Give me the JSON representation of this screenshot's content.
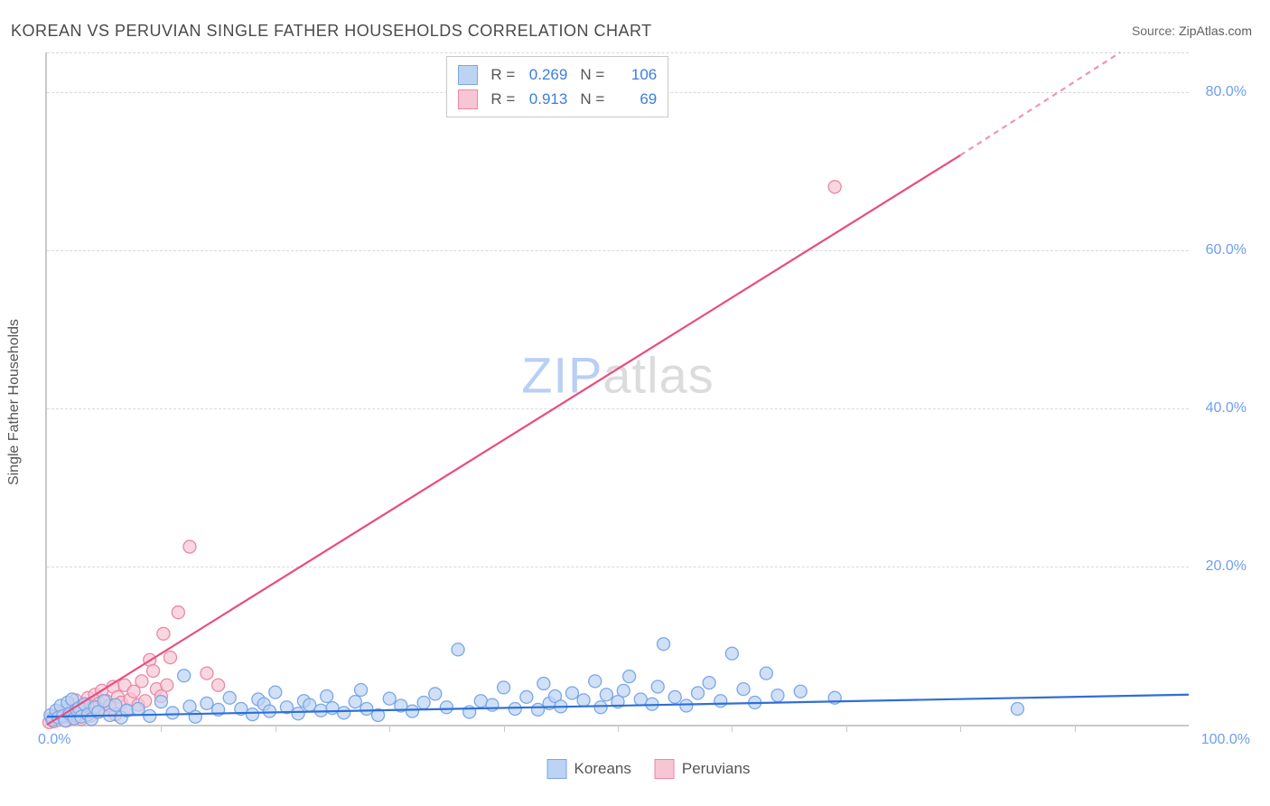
{
  "title": "KOREAN VS PERUVIAN SINGLE FATHER HOUSEHOLDS CORRELATION CHART",
  "source_label": "Source:",
  "source_value": "ZipAtlas.com",
  "watermark_zip": "ZIP",
  "watermark_atlas": "atlas",
  "chart": {
    "type": "scatter",
    "ylabel": "Single Father Households",
    "xlim": [
      0,
      100
    ],
    "ylim": [
      0,
      85
    ],
    "xaxis_left": "0.0%",
    "xaxis_right": "100.0%",
    "ytick_values": [
      20,
      40,
      60,
      80
    ],
    "ytick_labels": [
      "20.0%",
      "40.0%",
      "60.0%",
      "80.0%"
    ],
    "xaxis_tick_positions": [
      10,
      20,
      30,
      40,
      50,
      60,
      70,
      80,
      90
    ],
    "grid_color": "#d9d9d9",
    "axis_color": "#c9c9c9",
    "background_color": "#ffffff",
    "marker_radius": 7,
    "marker_stroke_width": 1.3,
    "line_width": 2.2,
    "series": {
      "koreans": {
        "label": "Koreans",
        "fill": "#bcd3f4",
        "stroke": "#7aa6e6",
        "line_color": "#2f6fd6",
        "r": "0.269",
        "n": "106",
        "trend": {
          "x1": 0,
          "y1": 1.0,
          "x2": 100,
          "y2": 3.8
        },
        "points": [
          [
            0.3,
            1.2
          ],
          [
            0.5,
            0.6
          ],
          [
            0.8,
            1.8
          ],
          [
            1.0,
            0.9
          ],
          [
            1.2,
            2.4
          ],
          [
            1.4,
            1.1
          ],
          [
            1.6,
            0.5
          ],
          [
            1.8,
            2.8
          ],
          [
            2.0,
            1.4
          ],
          [
            2.2,
            3.2
          ],
          [
            2.4,
            0.8
          ],
          [
            2.6,
            1.9
          ],
          [
            2.8,
            2.1
          ],
          [
            3.0,
            1.0
          ],
          [
            3.3,
            2.6
          ],
          [
            3.6,
            1.3
          ],
          [
            3.9,
            0.7
          ],
          [
            4.2,
            2.2
          ],
          [
            4.5,
            1.6
          ],
          [
            5.0,
            3.0
          ],
          [
            5.5,
            1.2
          ],
          [
            6.0,
            2.5
          ],
          [
            6.5,
            0.9
          ],
          [
            7.0,
            1.8
          ],
          [
            8.0,
            2.0
          ],
          [
            9.0,
            1.1
          ],
          [
            10.0,
            2.9
          ],
          [
            11.0,
            1.5
          ],
          [
            12.0,
            6.2
          ],
          [
            12.5,
            2.3
          ],
          [
            13.0,
            1.0
          ],
          [
            14.0,
            2.7
          ],
          [
            15.0,
            1.9
          ],
          [
            16.0,
            3.4
          ],
          [
            17.0,
            2.0
          ],
          [
            18.0,
            1.3
          ],
          [
            18.5,
            3.2
          ],
          [
            19.0,
            2.6
          ],
          [
            19.5,
            1.7
          ],
          [
            20.0,
            4.1
          ],
          [
            21.0,
            2.2
          ],
          [
            22.0,
            1.4
          ],
          [
            22.5,
            3.0
          ],
          [
            23.0,
            2.5
          ],
          [
            24.0,
            1.8
          ],
          [
            24.5,
            3.6
          ],
          [
            25.0,
            2.1
          ],
          [
            26.0,
            1.5
          ],
          [
            27.0,
            2.9
          ],
          [
            27.5,
            4.4
          ],
          [
            28.0,
            2.0
          ],
          [
            29.0,
            1.2
          ],
          [
            30.0,
            3.3
          ],
          [
            31.0,
            2.4
          ],
          [
            32.0,
            1.7
          ],
          [
            33.0,
            2.8
          ],
          [
            34.0,
            3.9
          ],
          [
            35.0,
            2.2
          ],
          [
            36.0,
            9.5
          ],
          [
            37.0,
            1.6
          ],
          [
            38.0,
            3.0
          ],
          [
            39.0,
            2.5
          ],
          [
            40.0,
            4.7
          ],
          [
            41.0,
            2.0
          ],
          [
            42.0,
            3.5
          ],
          [
            43.0,
            1.9
          ],
          [
            43.5,
            5.2
          ],
          [
            44.0,
            2.7
          ],
          [
            44.5,
            3.6
          ],
          [
            45.0,
            2.3
          ],
          [
            46.0,
            4.0
          ],
          [
            47.0,
            3.1
          ],
          [
            48.0,
            5.5
          ],
          [
            48.5,
            2.2
          ],
          [
            49.0,
            3.8
          ],
          [
            50.0,
            2.9
          ],
          [
            50.5,
            4.3
          ],
          [
            51.0,
            6.1
          ],
          [
            52.0,
            3.2
          ],
          [
            53.0,
            2.6
          ],
          [
            53.5,
            4.8
          ],
          [
            54.0,
            10.2
          ],
          [
            55.0,
            3.5
          ],
          [
            56.0,
            2.4
          ],
          [
            57.0,
            4.0
          ],
          [
            58.0,
            5.3
          ],
          [
            59.0,
            3.0
          ],
          [
            60.0,
            9.0
          ],
          [
            61.0,
            4.5
          ],
          [
            62.0,
            2.8
          ],
          [
            63.0,
            6.5
          ],
          [
            64.0,
            3.7
          ],
          [
            66.0,
            4.2
          ],
          [
            69.0,
            3.4
          ],
          [
            85.0,
            2.0
          ]
        ]
      },
      "peruvians": {
        "label": "Peruvians",
        "fill": "#f7c6d4",
        "stroke": "#ec87a6",
        "line_color": "#ea4c7e",
        "r": "0.913",
        "n": "69",
        "trend_solid": {
          "x1": 0,
          "y1": 0,
          "x2": 80,
          "y2": 72
        },
        "trend_dashed": {
          "x1": 80,
          "y1": 72,
          "x2": 94,
          "y2": 85
        },
        "points": [
          [
            0.2,
            0.3
          ],
          [
            0.4,
            0.8
          ],
          [
            0.6,
            0.4
          ],
          [
            0.8,
            1.1
          ],
          [
            1.0,
            0.6
          ],
          [
            1.1,
            1.5
          ],
          [
            1.3,
            0.9
          ],
          [
            1.5,
            1.8
          ],
          [
            1.7,
            0.5
          ],
          [
            1.9,
            1.3
          ],
          [
            2.0,
            2.2
          ],
          [
            2.2,
            0.8
          ],
          [
            2.4,
            1.7
          ],
          [
            2.5,
            3.1
          ],
          [
            2.7,
            1.0
          ],
          [
            2.9,
            2.0
          ],
          [
            3.0,
            0.7
          ],
          [
            3.2,
            2.5
          ],
          [
            3.4,
            1.4
          ],
          [
            3.6,
            3.4
          ],
          [
            3.8,
            1.1
          ],
          [
            4.0,
            2.1
          ],
          [
            4.2,
            3.8
          ],
          [
            4.4,
            1.6
          ],
          [
            4.6,
            2.7
          ],
          [
            4.8,
            4.3
          ],
          [
            5.0,
            1.9
          ],
          [
            5.2,
            3.0
          ],
          [
            5.5,
            2.4
          ],
          [
            5.8,
            4.8
          ],
          [
            6.0,
            1.3
          ],
          [
            6.2,
            3.5
          ],
          [
            6.5,
            2.8
          ],
          [
            6.8,
            5.0
          ],
          [
            7.0,
            1.8
          ],
          [
            7.3,
            3.2
          ],
          [
            7.6,
            4.2
          ],
          [
            8.0,
            2.5
          ],
          [
            8.3,
            5.5
          ],
          [
            8.6,
            3.0
          ],
          [
            9.0,
            8.2
          ],
          [
            9.3,
            6.8
          ],
          [
            9.6,
            4.5
          ],
          [
            10.0,
            3.6
          ],
          [
            10.2,
            11.5
          ],
          [
            10.5,
            5.0
          ],
          [
            10.8,
            8.5
          ],
          [
            11.5,
            14.2
          ],
          [
            12.5,
            22.5
          ],
          [
            14.0,
            6.5
          ],
          [
            15.0,
            5.0
          ],
          [
            69.0,
            68.0
          ]
        ]
      }
    }
  },
  "stat_legend": {
    "r_label": "R =",
    "n_label": "N ="
  },
  "colors": {
    "title_text": "#4a4a4a",
    "axis_value_text": "#6f9ef0",
    "label_text": "#555555"
  }
}
